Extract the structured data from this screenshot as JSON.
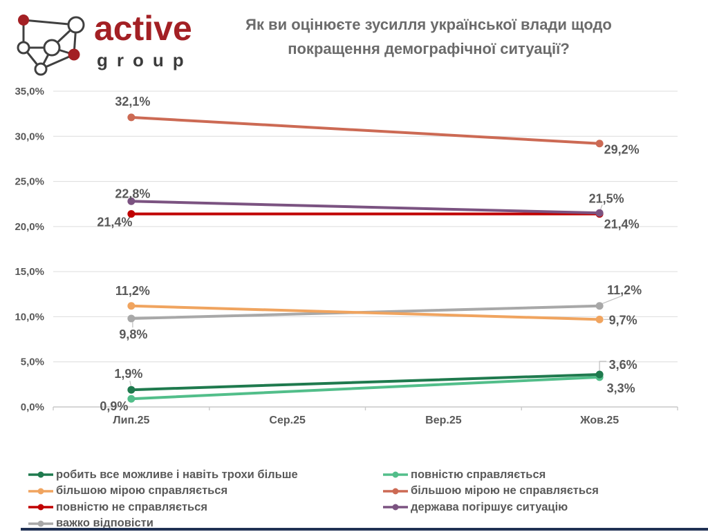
{
  "logo": {
    "brand": "active",
    "sub": "group",
    "brand_color": "#A32024",
    "sub_color": "#3C3C3C",
    "node_outline_color": "#404040",
    "node_fill_color": "#A32024"
  },
  "title": {
    "line1": "Як ви оцінюєте зусилля української влади щодо",
    "line2": "покращення демографічної ситуації?"
  },
  "chart_data": {
    "type": "line",
    "x": [
      "Лип.25",
      "Сер.25",
      "Вер.25",
      "Жов.25"
    ],
    "ylim": [
      0,
      35
    ],
    "ytick_step": 5,
    "ytick_labels": [
      "0,0%",
      "5,0%",
      "10,0%",
      "15,0%",
      "20,0%",
      "25,0%",
      "30,0%",
      "35,0%"
    ],
    "grid": true,
    "legend_position": "bottom",
    "gridline_color": "#DCDCDC",
    "axis_color": "#C9C9C9",
    "label_color": "#595959",
    "leader_color": "#BFBFBF",
    "series": [
      {
        "name": "робить все можливе і навіть трохи більше",
        "color": "#1F7A4E",
        "points": [
          {
            "cat": 0,
            "value": 1.9,
            "label": "1,9%",
            "dx": -4,
            "dy": -23,
            "leader": [
              [
                0,
                -3
              ],
              [
                -2,
                -13
              ]
            ]
          },
          {
            "cat": 3,
            "value": 3.6,
            "label": "3,6%",
            "dx": 34,
            "dy": -14,
            "leader": [
              [
                0,
                -5
              ],
              [
                0,
                -19
              ],
              [
                10,
                -19
              ]
            ]
          }
        ]
      },
      {
        "name": "повністю справляється",
        "color": "#52BE8A",
        "points": [
          {
            "cat": 0,
            "value": 0.9,
            "label": "0,9%",
            "dx": -25,
            "dy": 11
          },
          {
            "cat": 3,
            "value": 3.3,
            "label": "3,3%",
            "dx": 31,
            "dy": 16
          }
        ]
      },
      {
        "name": "більшою мірою справляється",
        "color": "#F0A45F",
        "points": [
          {
            "cat": 0,
            "value": 11.2,
            "label": "11,2%",
            "dx": 2,
            "dy": -22
          },
          {
            "cat": 3,
            "value": 9.7,
            "label": "9,7%",
            "dx": 34,
            "dy": 1,
            "leader": [
              [
                6,
                0
              ],
              [
                14,
                0
              ]
            ]
          }
        ]
      },
      {
        "name": "більшою мірою не справляється",
        "color": "#CC6A54",
        "points": [
          {
            "cat": 0,
            "value": 32.1,
            "label": "32,1%",
            "dx": 2,
            "dy": -23
          },
          {
            "cat": 3,
            "value": 29.2,
            "label": "29,2%",
            "dx": 32,
            "dy": 9
          }
        ]
      },
      {
        "name": "повністю не справляється",
        "color": "#C00000",
        "points": [
          {
            "cat": 0,
            "value": 21.4,
            "label": "21,4%",
            "dx": -24,
            "dy": 12
          },
          {
            "cat": 3,
            "value": 21.4,
            "label": "21,4%",
            "dx": 32,
            "dy": 15
          }
        ]
      },
      {
        "name": "держава погіршує ситуацію",
        "color": "#7B5381",
        "points": [
          {
            "cat": 0,
            "value": 22.8,
            "label": "22,8%",
            "dx": 2,
            "dy": -11
          },
          {
            "cat": 3,
            "value": 21.5,
            "label": "21,5%",
            "dx": 10,
            "dy": -21,
            "leader": [
              [
                1,
                -4
              ],
              [
                4,
                -12
              ]
            ]
          }
        ]
      },
      {
        "name": "важко відповісти",
        "color": "#A8A8A8",
        "points": [
          {
            "cat": 0,
            "value": 9.8,
            "label": "9,8%",
            "dx": 3,
            "dy": 23,
            "leader": [
              [
                2,
                5
              ],
              [
                2,
                13
              ]
            ]
          },
          {
            "cat": 3,
            "value": 11.2,
            "label": "11,2%",
            "dx": 36,
            "dy": -23,
            "leader": [
              [
                3,
                -3
              ],
              [
                31,
                -14
              ]
            ]
          }
        ]
      }
    ],
    "draw_order": [
      6,
      2,
      1,
      0,
      4,
      5,
      3
    ],
    "legend_columns": {
      "left": [
        0,
        2,
        4,
        6
      ],
      "right": [
        1,
        3,
        5
      ]
    }
  },
  "footer": {
    "bar_color": "#203154"
  }
}
